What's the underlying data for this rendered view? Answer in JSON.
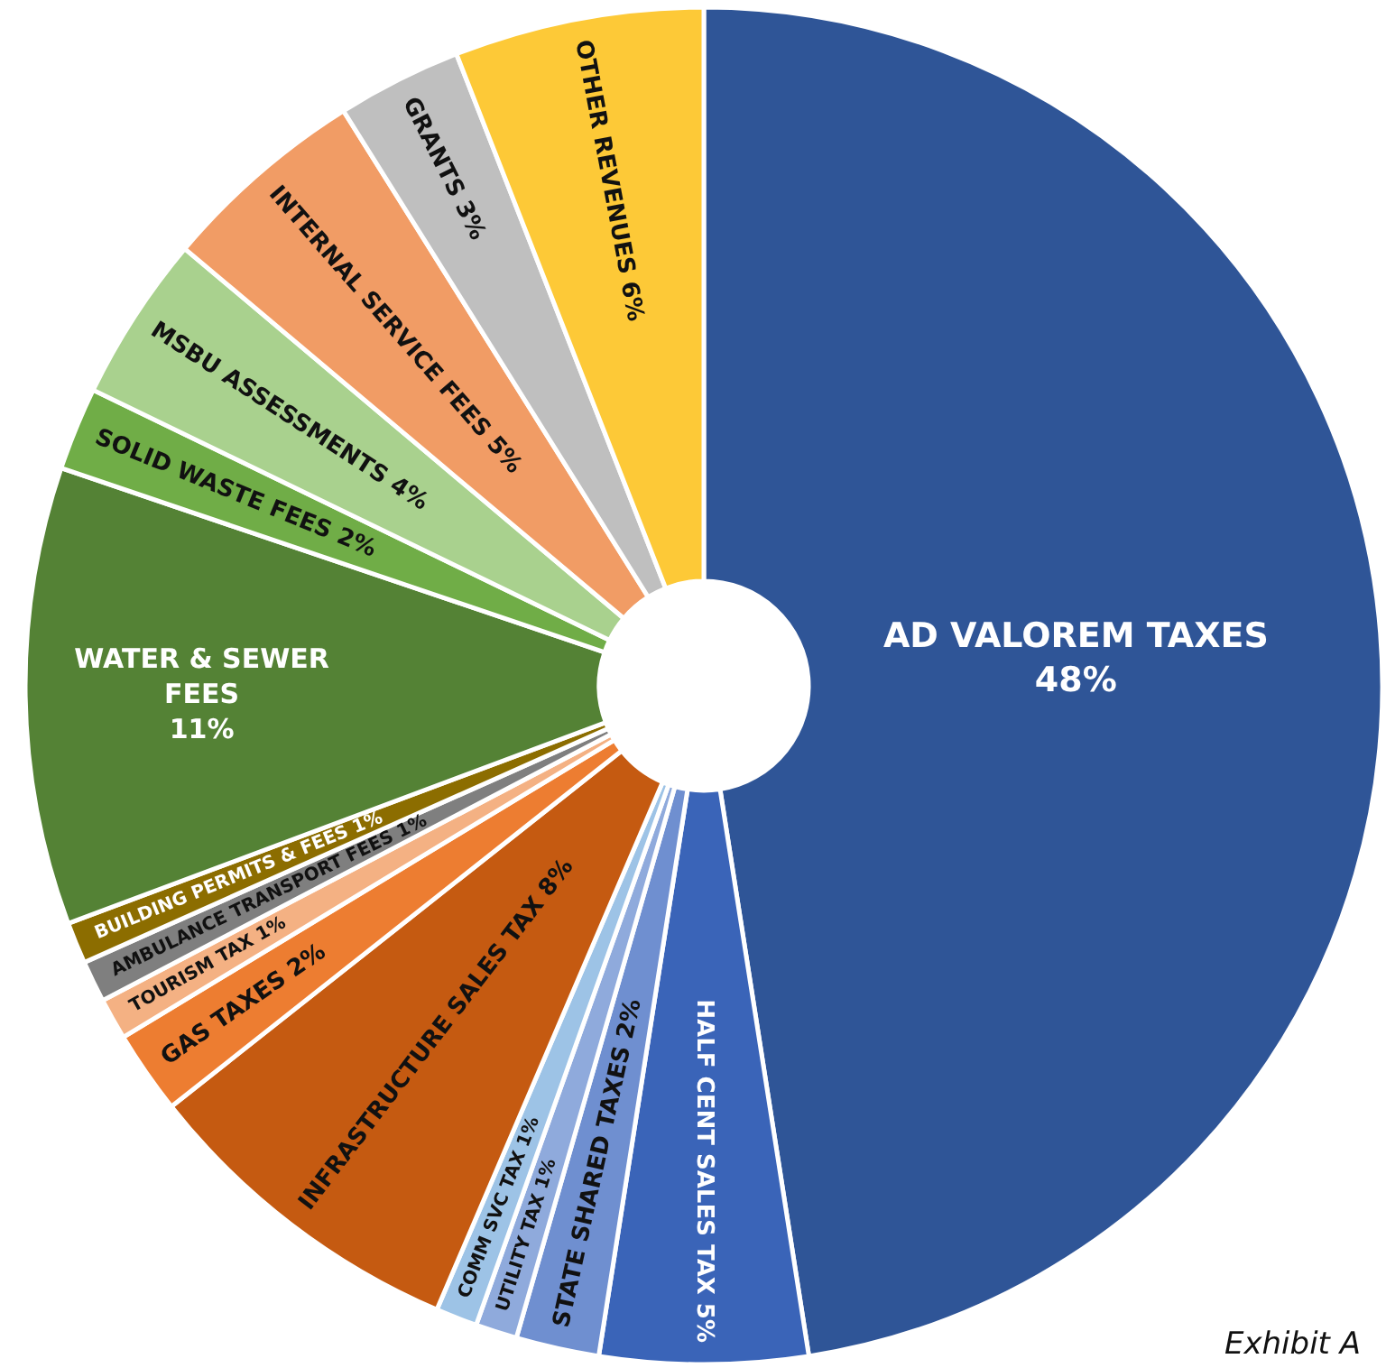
{
  "chart_data": {
    "type": "donut",
    "categories": [
      "AD VALOREM TAXES",
      "HALF CENT SALES TAX",
      "STATE SHARED TAXES",
      "UTILITY TAX",
      "COMM SVC TAX",
      "INFRASTRUCTURE SALES TAX",
      "GAS TAXES",
      "TOURISM TAX",
      "AMBULANCE TRANSPORT FEES",
      "BUILDING PERMITS & FEES",
      "WATER & SEWER FEES",
      "SOLID WASTE FEES",
      "MSBU ASSESSMENTS",
      "INTERNAL SERVICE FEES",
      "GRANTS",
      "OTHER REVENUES"
    ],
    "values": [
      48,
      5,
      2,
      1,
      1,
      8,
      2,
      1,
      1,
      1,
      11,
      2,
      4,
      5,
      3,
      6
    ],
    "value_labels": [
      "48%",
      "5%",
      "2%",
      "1%",
      "1%",
      "8%",
      "2%",
      "1%",
      "1%",
      "1%",
      "11%",
      "2%",
      "4%",
      "5%",
      "3%",
      "6%"
    ],
    "colors": [
      "#2f5597",
      "#3a64b8",
      "#6f8fd0",
      "#8faadc",
      "#9dc3e6",
      "#c55a11",
      "#ed7d31",
      "#f4b183",
      "#7f7f7f",
      "#8c6d00",
      "#548235",
      "#70ad47",
      "#a9d18e",
      "#f19c65",
      "#bfbfbf",
      "#fdc937"
    ],
    "annotations": [
      "Exhibit A"
    ]
  }
}
